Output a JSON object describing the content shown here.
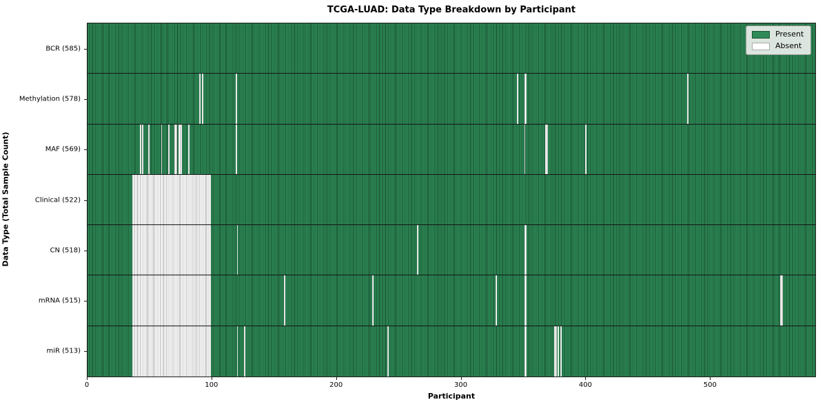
{
  "chart_data": {
    "type": "heatmap",
    "title": "TCGA-LUAD: Data Type Breakdown by Participant",
    "xlabel": "Participant",
    "ylabel": "Data Type (Total Sample Count)",
    "x_range": [
      0,
      585
    ],
    "x_ticks": [
      0,
      100,
      200,
      300,
      400,
      500
    ],
    "total_participants": 585,
    "grid": false,
    "legend_position": "upper right",
    "legend": [
      {
        "label": "Present",
        "color": "#2e8b57",
        "edge_color": "#1d5737"
      },
      {
        "label": "Absent",
        "color": "#ffffff",
        "edge_color": "#a9aca9"
      }
    ],
    "rows": [
      {
        "label": "BCR (585)",
        "data_type": "BCR",
        "present_count": 585,
        "absent_ranges": []
      },
      {
        "label": "Methylation (578)",
        "data_type": "Methylation",
        "present_count": 578,
        "absent_ranges": [
          [
            90,
            91
          ],
          [
            92,
            93
          ],
          [
            119,
            120
          ],
          [
            345,
            346
          ],
          [
            351,
            353
          ],
          [
            482,
            483
          ]
        ]
      },
      {
        "label": "MAF (569)",
        "data_type": "MAF",
        "present_count": 569,
        "absent_ranges": [
          [
            42,
            43
          ],
          [
            44,
            45
          ],
          [
            49,
            50
          ],
          [
            59,
            60
          ],
          [
            65,
            66
          ],
          [
            70,
            72
          ],
          [
            73,
            76
          ],
          [
            81,
            82
          ],
          [
            119,
            120
          ],
          [
            351,
            352
          ],
          [
            368,
            370
          ],
          [
            400,
            401
          ]
        ]
      },
      {
        "label": "Clinical (522)",
        "data_type": "Clinical",
        "present_count": 522,
        "absent_ranges": [
          [
            36,
            99
          ]
        ]
      },
      {
        "label": "CN (518)",
        "data_type": "CN",
        "present_count": 518,
        "absent_ranges": [
          [
            36,
            99
          ],
          [
            120,
            121
          ],
          [
            265,
            266
          ],
          [
            351,
            353
          ]
        ]
      },
      {
        "label": "mRNA (515)",
        "data_type": "mRNA",
        "present_count": 515,
        "absent_ranges": [
          [
            36,
            99
          ],
          [
            158,
            159
          ],
          [
            229,
            230
          ],
          [
            328,
            329
          ],
          [
            351,
            353
          ],
          [
            557,
            559
          ]
        ]
      },
      {
        "label": "miR (513)",
        "data_type": "miR",
        "present_count": 513,
        "absent_ranges": [
          [
            36,
            99
          ],
          [
            120,
            121
          ],
          [
            126,
            127
          ],
          [
            241,
            242
          ],
          [
            351,
            353
          ],
          [
            375,
            377
          ],
          [
            378,
            379
          ],
          [
            380,
            381
          ]
        ]
      }
    ]
  },
  "colors": {
    "present_fill": "#2e8b57",
    "present_edge": "#17492d",
    "absent_fill": "#ffffff",
    "absent_edge": "#a8a8a8",
    "spine": "#1a1a1a",
    "legend_bg": "#eceeec"
  }
}
